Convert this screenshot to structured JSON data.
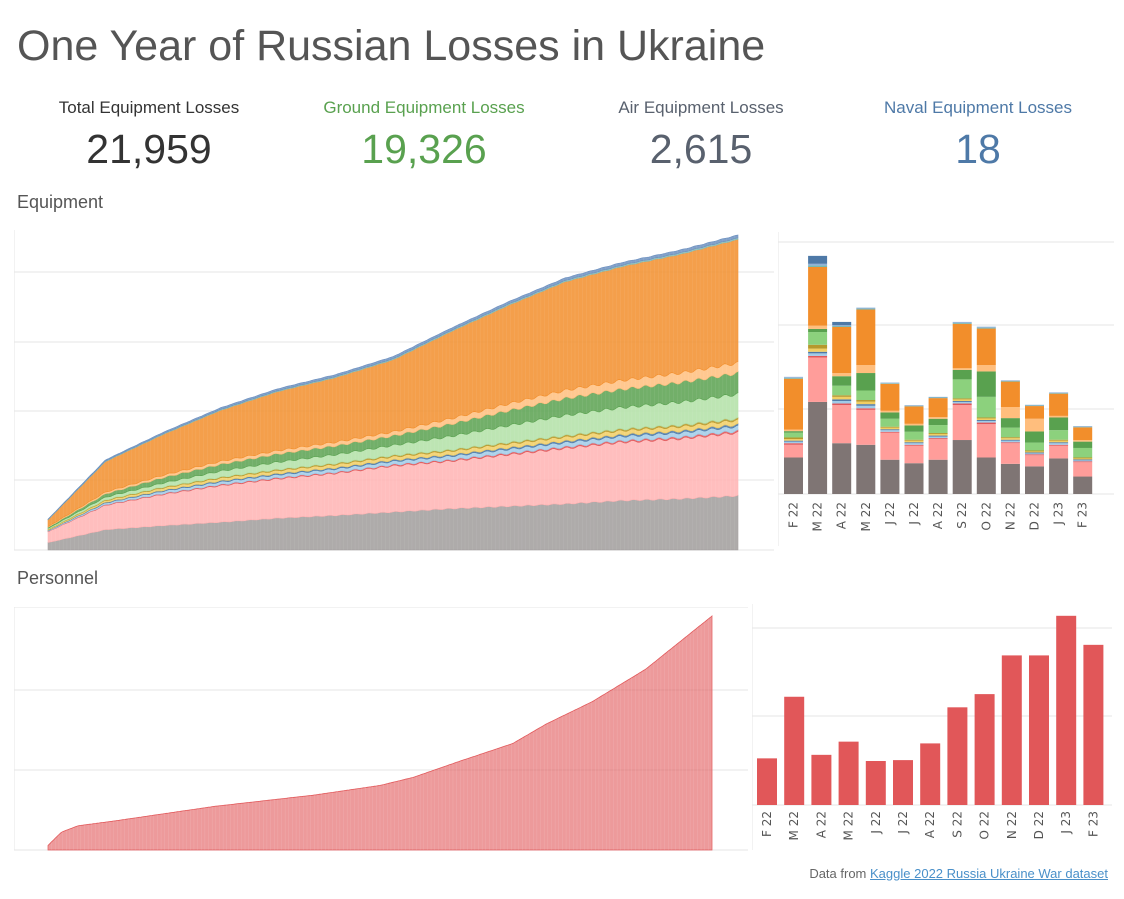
{
  "title": "One Year of Russian Losses in Ukraine",
  "kpis": [
    {
      "label": "Total Equipment Losses",
      "value": "21,959",
      "color": "#333333"
    },
    {
      "label": "Ground Equipment Losses",
      "value": "19,326",
      "color": "#59a14f"
    },
    {
      "label": "Air Equipment Losses",
      "value": "2,615",
      "color": "#59616e"
    },
    {
      "label": "Naval Equipment Losses",
      "value": "18",
      "color": "#4e79a7"
    }
  ],
  "sections": {
    "equipment": "Equipment",
    "personnel": "Personnel"
  },
  "footer": {
    "prefix": "Data from",
    "link": "Kaggle 2022 Russia Ukraine War dataset"
  },
  "colors": {
    "grid": "#e6e6e6",
    "personnel": "#e15759"
  },
  "chart_data": [
    {
      "type": "area",
      "name": "equipment-cumulative",
      "x_count": 365,
      "series": [
        {
          "color": "#a09c9b",
          "values": [
            110,
            300,
            360,
            410,
            470,
            510,
            560,
            610,
            645,
            680,
            730,
            755,
            800
          ]
        },
        {
          "color": "#ffb3b3",
          "values": [
            160,
            360,
            460,
            540,
            580,
            620,
            680,
            700,
            760,
            820,
            860,
            885,
            930
          ]
        },
        {
          "color": "#e15759",
          "values": [
            5,
            9,
            12,
            14,
            15,
            16,
            17,
            18,
            20,
            21,
            22,
            23,
            25
          ]
        },
        {
          "color": "#a0cbe8",
          "values": [
            10,
            25,
            35,
            40,
            45,
            48,
            50,
            55,
            60,
            62,
            64,
            66,
            68
          ]
        },
        {
          "color": "#4e79a7",
          "values": [
            5,
            10,
            13,
            15,
            17,
            18,
            19,
            20,
            22,
            23,
            24,
            25,
            26
          ]
        },
        {
          "color": "#f1ce63",
          "values": [
            10,
            25,
            35,
            40,
            45,
            48,
            50,
            55,
            58,
            60,
            62,
            64,
            66
          ]
        },
        {
          "color": "#b6992d",
          "values": [
            5,
            10,
            12,
            14,
            15,
            16,
            17,
            18,
            19,
            20,
            21,
            22,
            23
          ]
        },
        {
          "color": "#b1e0a6",
          "values": [
            15,
            40,
            60,
            90,
            110,
            130,
            150,
            200,
            250,
            300,
            320,
            340,
            360
          ]
        },
        {
          "color": "#59a14f",
          "values": [
            15,
            50,
            80,
            100,
            120,
            130,
            140,
            180,
            220,
            250,
            270,
            290,
            310
          ]
        },
        {
          "color": "#ffbe7d",
          "values": [
            10,
            25,
            35,
            45,
            50,
            55,
            60,
            80,
            100,
            120,
            130,
            140,
            150
          ]
        },
        {
          "color": "#f28e2b",
          "values": [
            100,
            450,
            600,
            750,
            870,
            950,
            1060,
            1280,
            1450,
            1600,
            1680,
            1750,
            1820
          ]
        },
        {
          "color": "#86bcb6",
          "values": [
            5,
            10,
            12,
            13,
            14,
            15,
            16,
            17,
            18,
            19,
            20,
            21,
            22
          ]
        },
        {
          "color": "#6b8fbf",
          "values": [
            5,
            15,
            20,
            25,
            28,
            30,
            32,
            34,
            36,
            38,
            40,
            42,
            44
          ]
        }
      ],
      "ylim": [
        0,
        4600
      ]
    },
    {
      "type": "bar",
      "name": "equipment-monthly",
      "categories": [
        "F 22",
        "M 22",
        "A 22",
        "M 22",
        "J 22",
        "J 22",
        "A 22",
        "S 22",
        "O 22",
        "N 22",
        "D 22",
        "J 23",
        "F 23"
      ],
      "series": [
        {
          "color": "#7f7574",
          "values": [
            115,
            290,
            160,
            155,
            108,
            97,
            108,
            170,
            115,
            95,
            87,
            112,
            55
          ]
        },
        {
          "color": "#ff9d9a",
          "values": [
            40,
            140,
            120,
            110,
            85,
            55,
            65,
            110,
            105,
            65,
            35,
            40,
            45
          ]
        },
        {
          "color": "#e15759",
          "values": [
            5,
            5,
            5,
            5,
            3,
            3,
            3,
            5,
            5,
            3,
            3,
            3,
            3
          ]
        },
        {
          "color": "#a0cbe8",
          "values": [
            5,
            8,
            8,
            8,
            5,
            5,
            5,
            5,
            5,
            5,
            3,
            5,
            3
          ]
        },
        {
          "color": "#4e79a7",
          "values": [
            3,
            5,
            5,
            5,
            3,
            3,
            3,
            3,
            3,
            3,
            3,
            3,
            3
          ]
        },
        {
          "color": "#f1ce63",
          "values": [
            5,
            10,
            8,
            8,
            5,
            5,
            5,
            5,
            5,
            5,
            3,
            5,
            3
          ]
        },
        {
          "color": "#b6992d",
          "values": [
            5,
            12,
            5,
            5,
            3,
            3,
            3,
            3,
            3,
            3,
            3,
            3,
            3
          ]
        },
        {
          "color": "#8cd17d",
          "values": [
            15,
            40,
            30,
            30,
            25,
            25,
            25,
            60,
            65,
            30,
            25,
            30,
            30
          ]
        },
        {
          "color": "#59a14f",
          "values": [
            5,
            10,
            30,
            55,
            20,
            20,
            20,
            30,
            80,
            30,
            35,
            40,
            20
          ]
        },
        {
          "color": "#ffbe7d",
          "values": [
            5,
            10,
            10,
            25,
            5,
            5,
            5,
            5,
            20,
            35,
            40,
            5,
            5
          ]
        },
        {
          "color": "#f28e2b",
          "values": [
            160,
            185,
            145,
            175,
            85,
            55,
            60,
            140,
            115,
            80,
            40,
            70,
            40
          ]
        },
        {
          "color": "#76b7b2",
          "values": [
            3,
            5,
            3,
            3,
            2,
            2,
            2,
            3,
            3,
            2,
            2,
            2,
            2
          ]
        },
        {
          "color": "#8fb0d8",
          "values": [
            3,
            5,
            3,
            3,
            2,
            2,
            2,
            3,
            3,
            2,
            2,
            2,
            2
          ]
        },
        {
          "color": "#4e79a7",
          "values": [
            0,
            25,
            10,
            0,
            0,
            0,
            0,
            0,
            0,
            0,
            0,
            0,
            0
          ]
        }
      ],
      "ylim": [
        0,
        800
      ]
    },
    {
      "type": "area",
      "name": "personnel-cumulative",
      "x_count": 365,
      "color": "#e15759",
      "ylim": [
        0,
        145000
      ],
      "keyframes": [
        {
          "t": 0.0,
          "v": 2800
        },
        {
          "t": 0.02,
          "v": 11000
        },
        {
          "t": 0.045,
          "v": 15000
        },
        {
          "t": 0.1,
          "v": 18000
        },
        {
          "t": 0.25,
          "v": 27000
        },
        {
          "t": 0.4,
          "v": 34000
        },
        {
          "t": 0.5,
          "v": 40000
        },
        {
          "t": 0.55,
          "v": 45000
        },
        {
          "t": 0.62,
          "v": 55000
        },
        {
          "t": 0.7,
          "v": 66000
        },
        {
          "t": 0.75,
          "v": 78000
        },
        {
          "t": 0.82,
          "v": 92000
        },
        {
          "t": 0.9,
          "v": 112000
        },
        {
          "t": 1.0,
          "v": 145000
        }
      ]
    },
    {
      "type": "bar",
      "name": "personnel-monthly",
      "categories": [
        "F 22",
        "M 22",
        "A 22",
        "M 22",
        "J 22",
        "J 22",
        "A 22",
        "S 22",
        "O 22",
        "N 22",
        "D 22",
        "J 23",
        "F 23"
      ],
      "values": [
        5300,
        12300,
        5700,
        7200,
        5000,
        5100,
        7000,
        11100,
        12600,
        17000,
        17000,
        21500,
        18200
      ],
      "ylim": [
        0,
        22500
      ],
      "color": "#e15759"
    }
  ]
}
